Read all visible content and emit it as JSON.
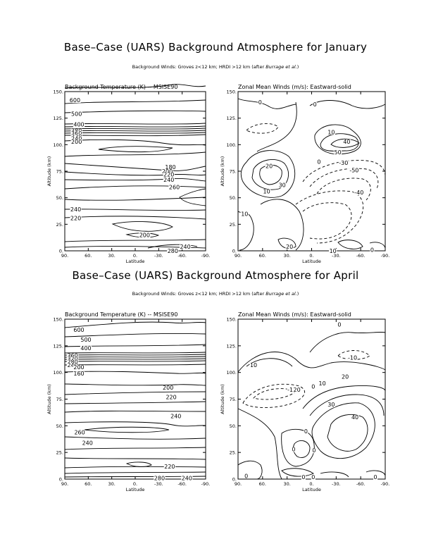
{
  "sections": [
    {
      "title": "Base–Case (UARS) Background Atmosphere for January",
      "subtitle_plain": "Background Winds: Groves z<12 km; HRDI >12 km (after ",
      "subtitle_italic": "Burrage et al.",
      "subtitle_end": ")"
    },
    {
      "title": "Base–Case (UARS) Background Atmosphere for April",
      "subtitle_plain": "Background Winds: Groves z<12 km; HRDI >12 km (after ",
      "subtitle_italic": "Burrage et al.",
      "subtitle_end": ")"
    }
  ],
  "chart_data": [
    {
      "type": "contour",
      "title": "Background Temperature (K) -- MSISE90",
      "xlabel": "Latitude",
      "ylabel": "Altitude (km)",
      "x_ticks": [
        "90.",
        "60.",
        "30.",
        "0.",
        "-30.",
        "-60.",
        "-90."
      ],
      "xlim": [
        90,
        -90
      ],
      "y_ticks": [
        "0.",
        "25.",
        "50.",
        "75.",
        "100.",
        "125.",
        "150."
      ],
      "ylim": [
        0,
        150
      ],
      "contour_labels": [
        {
          "text": "600",
          "x": 77,
          "y": 142
        },
        {
          "text": "500",
          "x": 75,
          "y": 129
        },
        {
          "text": "400",
          "x": 72,
          "y": 119
        },
        {
          "text": "380",
          "x": 75,
          "y": 113
        },
        {
          "text": "360",
          "x": 75,
          "y": 111
        },
        {
          "text": "220",
          "x": 75,
          "y": 108
        },
        {
          "text": "240",
          "x": 75,
          "y": 106
        },
        {
          "text": "200",
          "x": 75,
          "y": 103
        },
        {
          "text": "180",
          "x": -45,
          "y": 79
        },
        {
          "text": "200",
          "x": -41,
          "y": 75
        },
        {
          "text": "220",
          "x": -43,
          "y": 72
        },
        {
          "text": "240",
          "x": -43,
          "y": 67
        },
        {
          "text": "260",
          "x": -50,
          "y": 60
        },
        {
          "text": "240",
          "x": 76,
          "y": 39
        },
        {
          "text": "220",
          "x": 76,
          "y": 31
        },
        {
          "text": "200",
          "x": -12,
          "y": 15
        },
        {
          "text": "240",
          "x": -64,
          "y": 4
        },
        {
          "text": "280",
          "x": -48,
          "y": 0
        }
      ]
    },
    {
      "type": "contour",
      "title": "Zonal Mean Winds (m/s): Eastward-solid",
      "xlabel": "Latitude",
      "ylabel": "Altitude (km)",
      "x_ticks": [
        "90.",
        "60.",
        "30.",
        "0.",
        "-30.",
        "-60.",
        "-90."
      ],
      "xlim": [
        90,
        -90
      ],
      "y_ticks": [
        "0.",
        "25.",
        "50.",
        "75.",
        "100.",
        "125.",
        "150."
      ],
      "ylim": [
        0,
        150
      ],
      "contour_labels": [
        {
          "text": "0",
          "x": 63,
          "y": 140
        },
        {
          "text": "0",
          "x": -4,
          "y": 138
        },
        {
          "text": "10",
          "x": -24,
          "y": 112
        },
        {
          "text": "40",
          "x": -43,
          "y": 103
        },
        {
          "text": "50",
          "x": -32,
          "y": 93
        },
        {
          "text": "0",
          "x": -9,
          "y": 84
        },
        {
          "text": "-30",
          "x": -39,
          "y": 83
        },
        {
          "text": "-50",
          "x": -52,
          "y": 76
        },
        {
          "text": "20",
          "x": 52,
          "y": 80
        },
        {
          "text": "30",
          "x": 36,
          "y": 62
        },
        {
          "text": "10",
          "x": 55,
          "y": 56
        },
        {
          "text": "-40",
          "x": -58,
          "y": 55
        },
        {
          "text": "10",
          "x": 82,
          "y": 35
        },
        {
          "text": "20",
          "x": 27,
          "y": 4
        },
        {
          "text": "10",
          "x": -26,
          "y": 0
        },
        {
          "text": "0",
          "x": -74,
          "y": 1
        }
      ]
    },
    {
      "type": "contour",
      "title": "Background Temperature (K) -- MSISE90",
      "xlabel": "Latitude",
      "ylabel": "Altitude (km)",
      "x_ticks": [
        "90.",
        "60.",
        "30.",
        "0.",
        "-30.",
        "-60.",
        "-90."
      ],
      "xlim": [
        90,
        -90
      ],
      "y_ticks": [
        "0.",
        "25.",
        "50.",
        "75.",
        "100.",
        "125.",
        "150."
      ],
      "ylim": [
        0,
        150
      ],
      "contour_labels": [
        {
          "text": "600",
          "x": 72,
          "y": 140
        },
        {
          "text": "500",
          "x": 63,
          "y": 131
        },
        {
          "text": "400",
          "x": 63,
          "y": 123
        },
        {
          "text": "360",
          "x": 80,
          "y": 116
        },
        {
          "text": "320",
          "x": 80,
          "y": 113
        },
        {
          "text": "280",
          "x": 80,
          "y": 110
        },
        {
          "text": "240",
          "x": 80,
          "y": 107
        },
        {
          "text": "200",
          "x": 72,
          "y": 105
        },
        {
          "text": "160",
          "x": 72,
          "y": 99
        },
        {
          "text": "200",
          "x": -42,
          "y": 86
        },
        {
          "text": "220",
          "x": -46,
          "y": 77
        },
        {
          "text": "240",
          "x": -52,
          "y": 59
        },
        {
          "text": "260",
          "x": 71,
          "y": 44
        },
        {
          "text": "240",
          "x": 61,
          "y": 34
        },
        {
          "text": "220",
          "x": -44,
          "y": 12
        },
        {
          "text": "280",
          "x": -31,
          "y": 1
        },
        {
          "text": "240",
          "x": -66,
          "y": 1
        }
      ]
    },
    {
      "type": "contour",
      "title": "Zonal Mean Winds (m/s): Eastward-solid",
      "xlabel": "Latitude",
      "ylabel": "Altitude (km)",
      "x_ticks": [
        "90.",
        "60.",
        "30.",
        "0.",
        "-30.",
        "-60.",
        "-90."
      ],
      "xlim": [
        90,
        -90
      ],
      "y_ticks": [
        "0.",
        "25.",
        "50.",
        "75.",
        "100.",
        "125.",
        "150."
      ],
      "ylim": [
        0,
        150
      ],
      "contour_labels": [
        {
          "text": "0",
          "x": -34,
          "y": 145
        },
        {
          "text": "-10",
          "x": -50,
          "y": 114
        },
        {
          "text": "10",
          "x": 71,
          "y": 107
        },
        {
          "text": "-10",
          "x": 24,
          "y": 84
        },
        {
          "text": "20",
          "x": 18,
          "y": 84
        },
        {
          "text": "0",
          "x": -2,
          "y": 87
        },
        {
          "text": "10",
          "x": -13,
          "y": 90
        },
        {
          "text": "20",
          "x": -41,
          "y": 96
        },
        {
          "text": "30",
          "x": -24,
          "y": 70
        },
        {
          "text": "40",
          "x": -53,
          "y": 58
        },
        {
          "text": "0",
          "x": 7,
          "y": 45
        },
        {
          "text": "0",
          "x": 22,
          "y": 28
        },
        {
          "text": "0",
          "x": -3,
          "y": 27
        },
        {
          "text": "0",
          "x": 80,
          "y": 3
        },
        {
          "text": "0",
          "x": 10,
          "y": 2
        },
        {
          "text": "0",
          "x": -2,
          "y": 2
        },
        {
          "text": "0",
          "x": -78,
          "y": 2
        }
      ]
    }
  ]
}
